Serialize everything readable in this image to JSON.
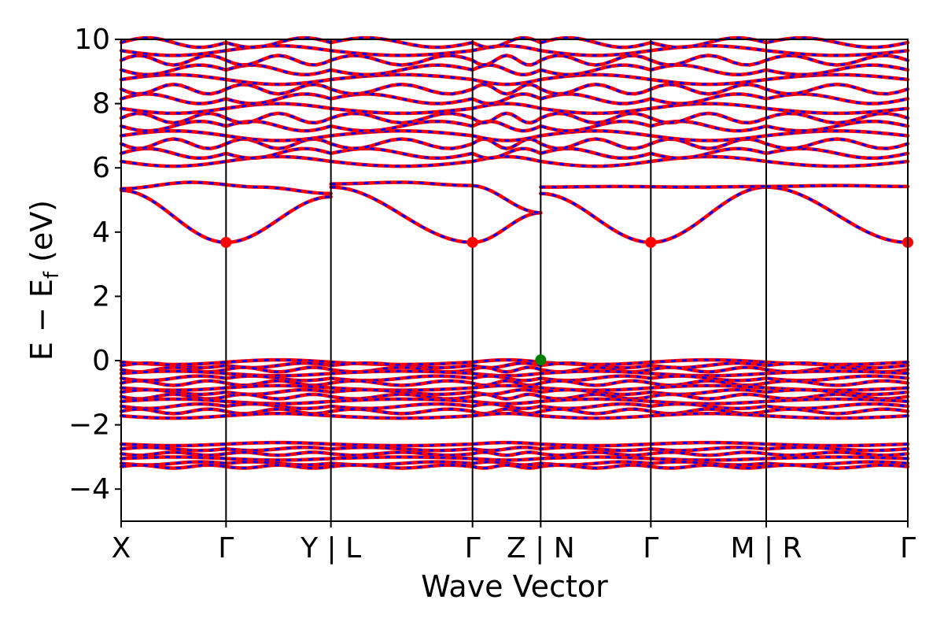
{
  "chart_data": {
    "type": "line",
    "xlabel": "Wave Vector",
    "ylabel_parts": {
      "main": "E − E",
      "sub": "f",
      "unit": " (eV)"
    },
    "ylim": [
      -5,
      10
    ],
    "yticks": [
      -4,
      -2,
      0,
      2,
      4,
      6,
      8,
      10
    ],
    "ytick_labels": [
      "−4",
      "−2",
      "0",
      "2",
      "4",
      "6",
      "8",
      "10"
    ],
    "kpath": {
      "ticks": [
        0,
        1,
        2,
        3.35,
        4,
        5.05,
        6.15,
        7.5
      ],
      "labels": [
        "X",
        "Γ",
        "Y | L",
        "Γ",
        "Z | N",
        "Γ",
        "M | R",
        "Γ"
      ],
      "xlim": [
        0,
        7.5
      ]
    },
    "series_colors": {
      "spin_up": "#ff0000",
      "spin_down": "#0000ff"
    },
    "markers": [
      {
        "role": "CBM",
        "color": "#ff0000",
        "points": [
          [
            1,
            3.68
          ],
          [
            3.35,
            3.68
          ],
          [
            5.05,
            3.68
          ],
          [
            7.5,
            3.68
          ]
        ]
      },
      {
        "role": "VBM",
        "color": "#008000",
        "points": [
          [
            4.0,
            0.02
          ]
        ]
      }
    ],
    "band_groups": [
      {
        "name": "core",
        "levels": [
          -2.6,
          -2.75,
          -2.9,
          -3.05,
          -3.2,
          -3.3
        ],
        "amplitude": 0.08
      },
      {
        "name": "valence",
        "levels": [
          -0.05,
          -0.15,
          -0.28,
          -0.4,
          -0.55,
          -0.7,
          -0.85,
          -0.98,
          -1.12,
          -1.27,
          -1.42,
          -1.58,
          -1.72
        ],
        "amplitude": 0.12
      },
      {
        "name": "conduction_high",
        "levels": [
          6.2,
          6.45,
          6.75,
          7.0,
          7.3,
          7.55,
          7.85,
          8.15,
          8.45,
          8.75,
          9.05,
          9.35,
          9.65,
          9.9
        ],
        "amplitude": 0.25
      }
    ],
    "conduction_low": {
      "lower_band": [
        {
          "from": 0,
          "to": 1,
          "start": 5.3,
          "end": 3.68
        },
        {
          "from": 1,
          "to": 2,
          "start": 3.68,
          "end": 5.1
        },
        {
          "from": 2,
          "to": 3.35,
          "start": 5.4,
          "end": 3.68
        },
        {
          "from": 3.35,
          "to": 4,
          "start": 3.68,
          "end": 4.6
        },
        {
          "from": 4,
          "to": 5.05,
          "start": 5.2,
          "end": 3.68
        },
        {
          "from": 5.05,
          "to": 6.15,
          "start": 3.68,
          "end": 5.4
        },
        {
          "from": 6.15,
          "to": 7.5,
          "start": 5.4,
          "end": 3.68
        }
      ],
      "upper_band": [
        {
          "from": 0,
          "to": 2,
          "values": [
            5.35,
            5.55,
            5.4,
            5.2
          ]
        },
        {
          "from": 2,
          "to": 4,
          "values": [
            5.5,
            5.55,
            5.45,
            4.6
          ]
        },
        {
          "from": 4,
          "to": 6.15,
          "values": [
            5.4,
            5.42,
            5.4,
            5.42
          ]
        },
        {
          "from": 6.15,
          "to": 7.5,
          "values": [
            5.42,
            5.45,
            5.42
          ]
        }
      ]
    }
  }
}
